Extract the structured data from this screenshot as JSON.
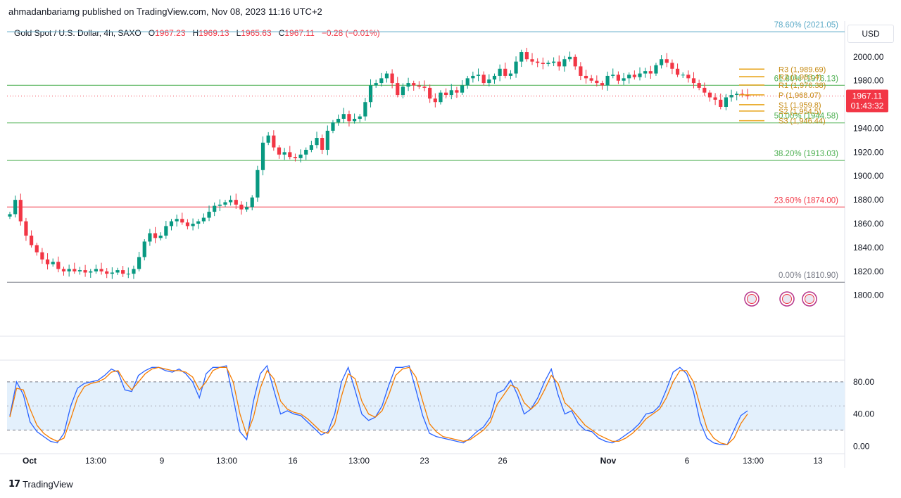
{
  "publisher": "ahmadanbariamg published on TradingView.com, Nov 08, 2023 11:16 UTC+2",
  "legend": {
    "symbol": "Gold Spot / U.S. Dollar, 4h, SAXO",
    "o_label": "O",
    "o": "1967.23",
    "h_label": "H",
    "h": "1969.13",
    "l_label": "L",
    "l": "1965.63",
    "c_label": "C",
    "c": "1967.11",
    "change": "−0.28 (−0.01%)"
  },
  "currency_button": "USD",
  "brand": "TradingView",
  "colors": {
    "up": "#089981",
    "down": "#f23645",
    "fib_top": "#5aa9c6",
    "fib_mid": "#4caf50",
    "fib_red": "#f23645",
    "pivot": "#e8a317",
    "stoch_k": "#2962ff",
    "stoch_d": "#f57c00"
  },
  "chart_data": [
    {
      "type": "candlestick",
      "title": "Gold Spot / U.S. Dollar, 4h, SAXO",
      "ylim": [
        1788,
        2030
      ],
      "y_ticks": [
        "2000.00",
        "1980.00",
        "1960.00",
        "1940.00",
        "1920.00",
        "1900.00",
        "1880.00",
        "1860.00",
        "1840.00",
        "1820.00",
        "1800.00"
      ],
      "x_ticks": [
        "Oct",
        "13:00",
        "9",
        "13:00",
        "16",
        "13:00",
        "23",
        "26",
        "Nov",
        "6",
        "13:00",
        "13"
      ],
      "last_price": "1967.11",
      "countdown": "01:43:32",
      "close_path": [
        1868,
        1880,
        1862,
        1850,
        1842,
        1836,
        1830,
        1826,
        1828,
        1822,
        1820,
        1822,
        1820,
        1821,
        1819,
        1820,
        1822,
        1820,
        1818,
        1819,
        1821,
        1818,
        1818,
        1822,
        1832,
        1845,
        1852,
        1848,
        1850,
        1858,
        1862,
        1864,
        1861,
        1858,
        1860,
        1862,
        1865,
        1870,
        1875,
        1876,
        1878,
        1880,
        1876,
        1872,
        1874,
        1882,
        1905,
        1928,
        1934,
        1924,
        1918,
        1920,
        1916,
        1915,
        1918,
        1922,
        1926,
        1932,
        1922,
        1938,
        1945,
        1948,
        1952,
        1946,
        1948,
        1950,
        1962,
        1976,
        1978,
        1982,
        1986,
        1978,
        1968,
        1975,
        1978,
        1976,
        1975,
        1974,
        1965,
        1962,
        1970,
        1968,
        1972,
        1970,
        1976,
        1982,
        1984,
        1985,
        1978,
        1981,
        1984,
        1990,
        1984,
        1986,
        1996,
        2004,
        1998,
        1996,
        1995,
        1994,
        1995,
        1996,
        1992,
        1998,
        2000,
        1992,
        1984,
        1982,
        1980,
        1978,
        1976,
        1984,
        1985,
        1980,
        1982,
        1985,
        1983,
        1986,
        1988,
        1986,
        1993,
        1998,
        1995,
        1990,
        1985,
        1985,
        1982,
        1978,
        1974,
        1970,
        1966,
        1964,
        1958,
        1966,
        1968,
        1969,
        1968,
        1967
      ],
      "horizontal_levels": [
        {
          "label": "78.60% (2021.05)",
          "value": 2021.05,
          "color": "#5aa9c6"
        },
        {
          "label": "61.80% (1976.13)",
          "value": 1976.13,
          "color": "#4caf50"
        },
        {
          "label": "50.00% (1944.58)",
          "value": 1944.58,
          "color": "#4caf50"
        },
        {
          "label": "38.20% (1913.03)",
          "value": 1913.03,
          "color": "#4caf50"
        },
        {
          "label": "23.60% (1874.00)",
          "value": 1874.0,
          "color": "#f23645"
        },
        {
          "label": "0.00% (1810.90)",
          "value": 1810.9,
          "color": "#787b86"
        }
      ],
      "pivot_levels": [
        {
          "label": "R3 (1,989.69)",
          "value": 1989.69
        },
        {
          "label": "R2 (1,983.4)",
          "value": 1983.4
        },
        {
          "label": "R1 (1,976.38)",
          "value": 1976.38
        },
        {
          "label": "P (1,968.07)",
          "value": 1968.07
        },
        {
          "label": "S1 (1,959.8)",
          "value": 1959.8
        },
        {
          "label": "S2 (1,954.5)",
          "value": 1954.5
        },
        {
          "label": "S3 (1,946.44)",
          "value": 1946.44
        }
      ]
    },
    {
      "type": "line",
      "indicator": "stochastic",
      "ylim": [
        -5,
        100
      ],
      "y_ticks": [
        "80.00",
        "40.00",
        "0.00"
      ],
      "band": [
        20,
        80
      ],
      "mid": 50,
      "series": [
        {
          "values": [
            38,
            80,
            64,
            30,
            18,
            12,
            6,
            4,
            16,
            50,
            72,
            78,
            80,
            82,
            88,
            96,
            92,
            70,
            68,
            88,
            94,
            98,
            98,
            94,
            92,
            96,
            90,
            80,
            60,
            90,
            98,
            98,
            100,
            60,
            18,
            8,
            56,
            90,
            100,
            70,
            40,
            44,
            40,
            38,
            30,
            22,
            14,
            18,
            40,
            80,
            98,
            70,
            40,
            32,
            36,
            50,
            76,
            98,
            98,
            100,
            70,
            38,
            16,
            12,
            10,
            8,
            6,
            4,
            10,
            18,
            24,
            36,
            66,
            70,
            82,
            64,
            40,
            46,
            60,
            80,
            96,
            64,
            40,
            44,
            28,
            20,
            18,
            10,
            6,
            4,
            8,
            14,
            20,
            28,
            40,
            42,
            50,
            70,
            92,
            98,
            90,
            68,
            30,
            10,
            4,
            2,
            2,
            20,
            38,
            44
          ]
        },
        {
          "values": [
            36,
            72,
            70,
            46,
            26,
            16,
            10,
            6,
            10,
            34,
            60,
            74,
            78,
            80,
            84,
            92,
            94,
            80,
            70,
            80,
            90,
            96,
            98,
            96,
            94,
            94,
            92,
            86,
            70,
            80,
            94,
            98,
            98,
            80,
            40,
            14,
            36,
            72,
            94,
            84,
            56,
            46,
            42,
            40,
            34,
            26,
            18,
            16,
            28,
            62,
            90,
            84,
            56,
            40,
            36,
            44,
            64,
            88,
            96,
            98,
            86,
            56,
            28,
            18,
            12,
            10,
            8,
            6,
            8,
            14,
            20,
            30,
            52,
            64,
            76,
            72,
            54,
            46,
            54,
            70,
            88,
            78,
            54,
            46,
            36,
            26,
            20,
            14,
            10,
            6,
            6,
            10,
            16,
            24,
            34,
            40,
            46,
            60,
            80,
            94,
            94,
            80,
            50,
            22,
            10,
            4,
            2,
            10,
            28,
            40
          ]
        }
      ]
    }
  ]
}
